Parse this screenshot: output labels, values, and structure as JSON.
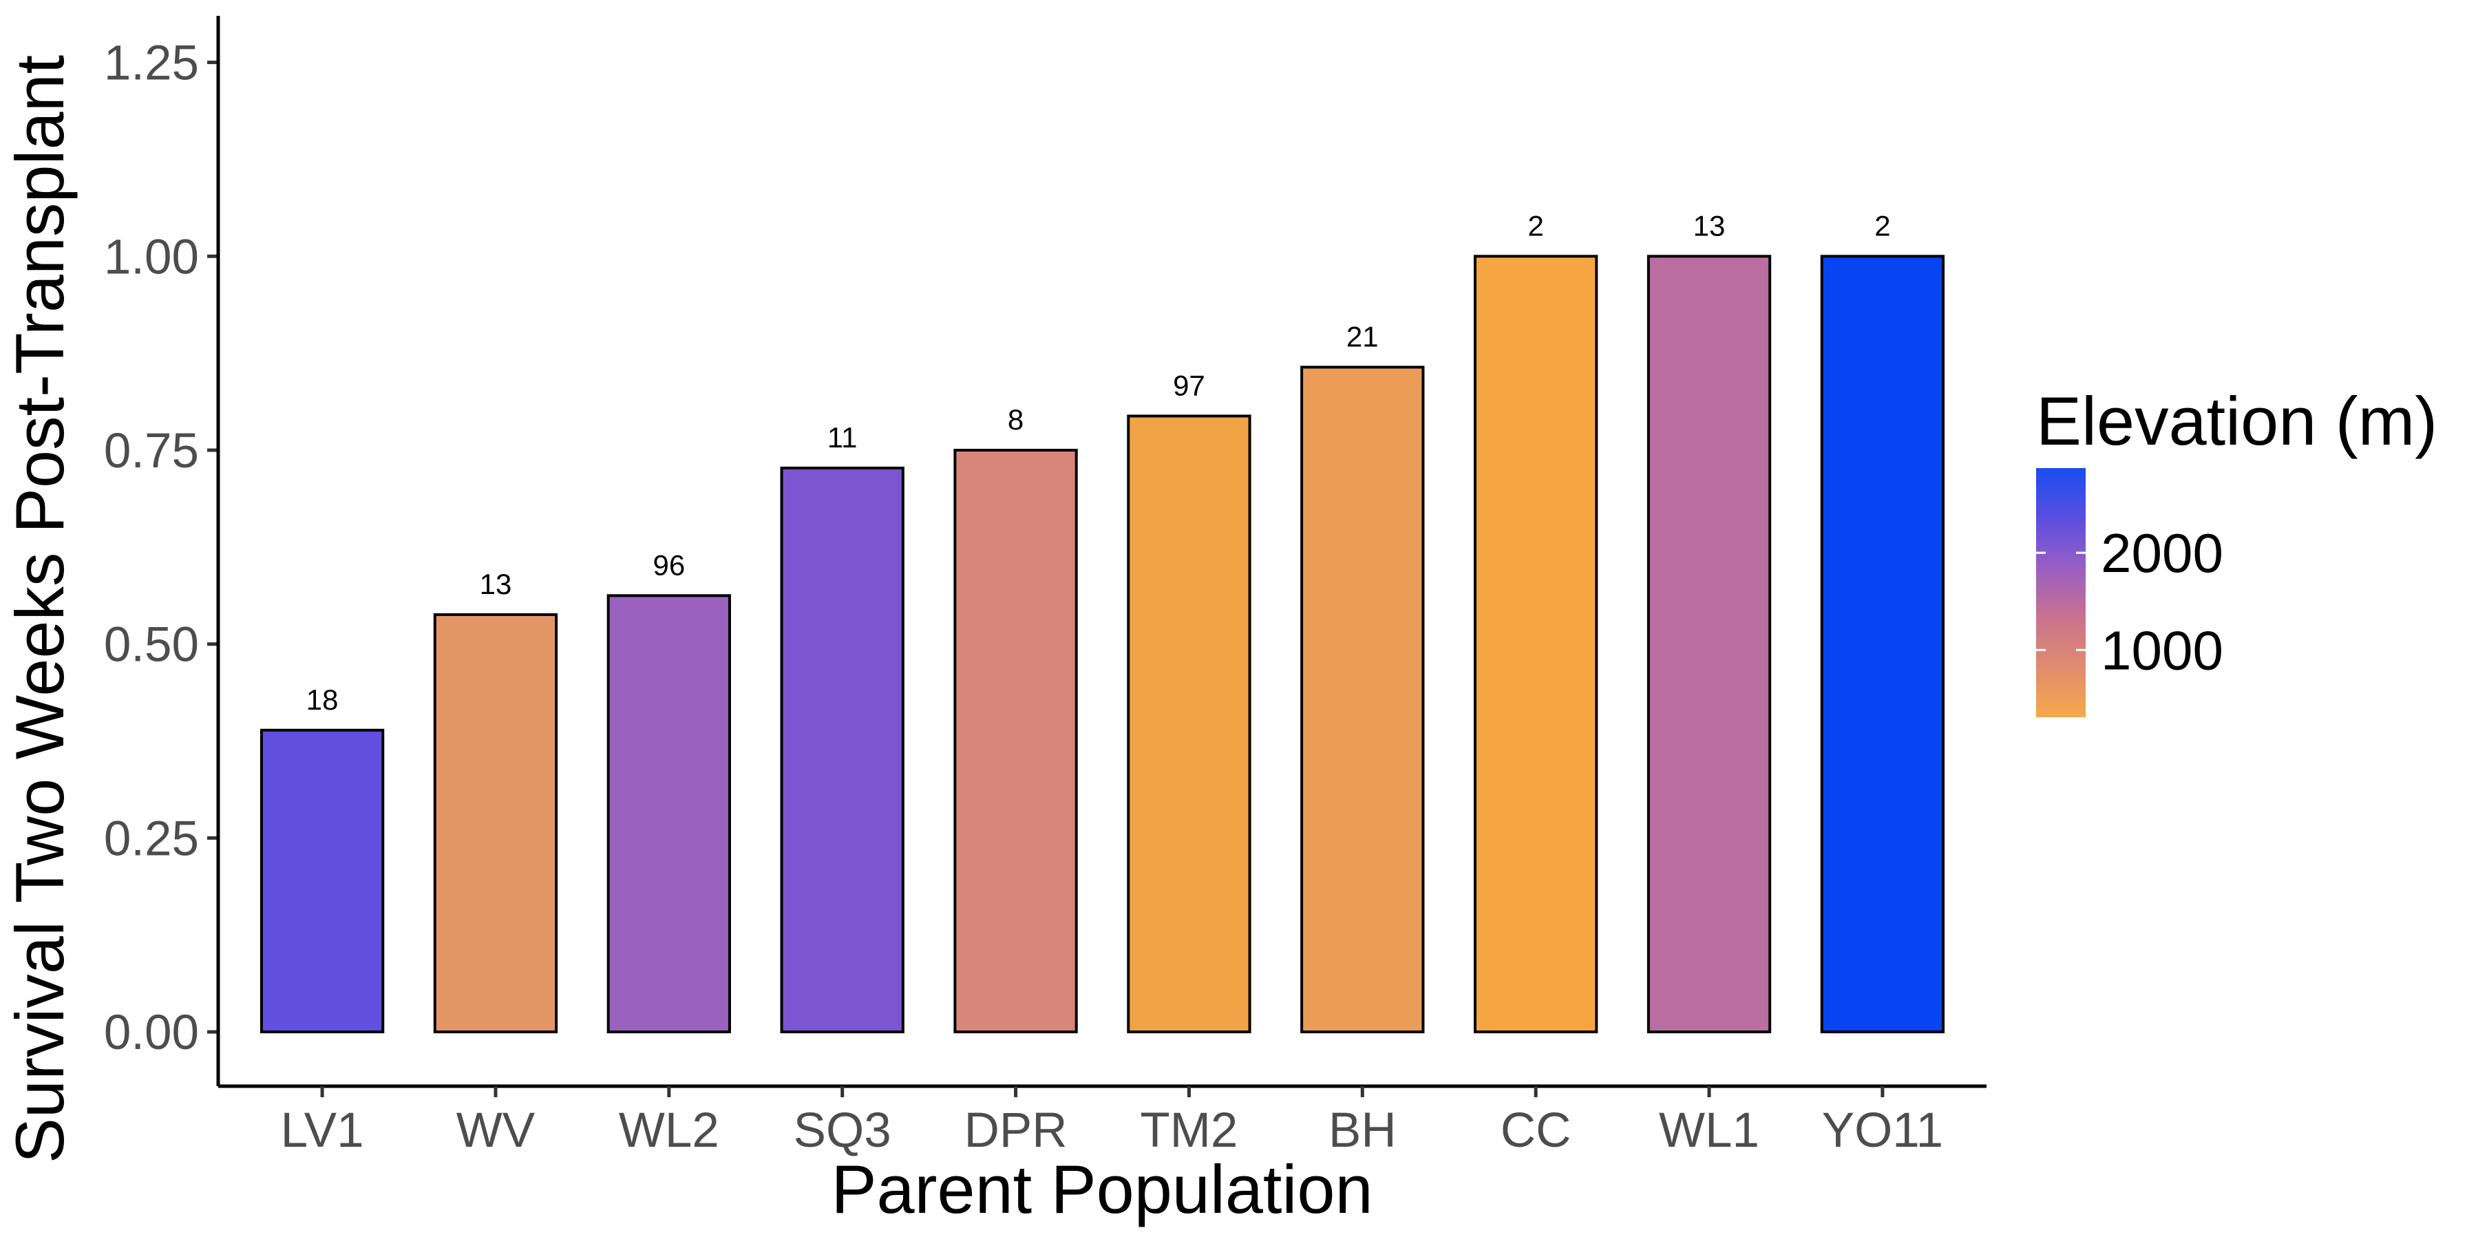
{
  "chart_data": {
    "type": "bar",
    "xlabel": "Parent Population",
    "ylabel": "Survival Two Weeks Post-Transplant",
    "ylim": [
      -0.07,
      1.31
    ],
    "y_ticks": [
      "0.00",
      "0.25",
      "0.50",
      "0.75",
      "1.00",
      "1.25"
    ],
    "y_tick_values": [
      0,
      0.25,
      0.5,
      0.75,
      1.0,
      1.25
    ],
    "grid": false,
    "categories": [
      "LV1",
      "WV",
      "WL2",
      "SQ3",
      "DPR",
      "TM2",
      "BH",
      "CC",
      "WL1",
      "YO11"
    ],
    "values": [
      0.389,
      0.538,
      0.5625,
      0.727,
      0.75,
      0.794,
      0.857,
      1.0,
      1.0,
      1.0
    ],
    "labels": [
      "18",
      "13",
      "96",
      "11",
      "8",
      "97",
      "21",
      "2",
      "13",
      "2"
    ],
    "colors": [
      "#624fe0",
      "#e49566",
      "#9a61bf",
      "#7c55d2",
      "#d9867a",
      "#f2a346",
      "#eb9d58",
      "#f5a641",
      "#b96da0",
      "#0645f1"
    ],
    "legend": {
      "title": "Elevation (m)",
      "placement": "right",
      "type": "colorbar",
      "ticks": [
        "2000",
        "1000"
      ],
      "colors": [
        "#1a4df0",
        "#5a4ee0",
        "#9a5ec4",
        "#c8728e",
        "#e08c6e",
        "#f5a94b"
      ]
    }
  }
}
